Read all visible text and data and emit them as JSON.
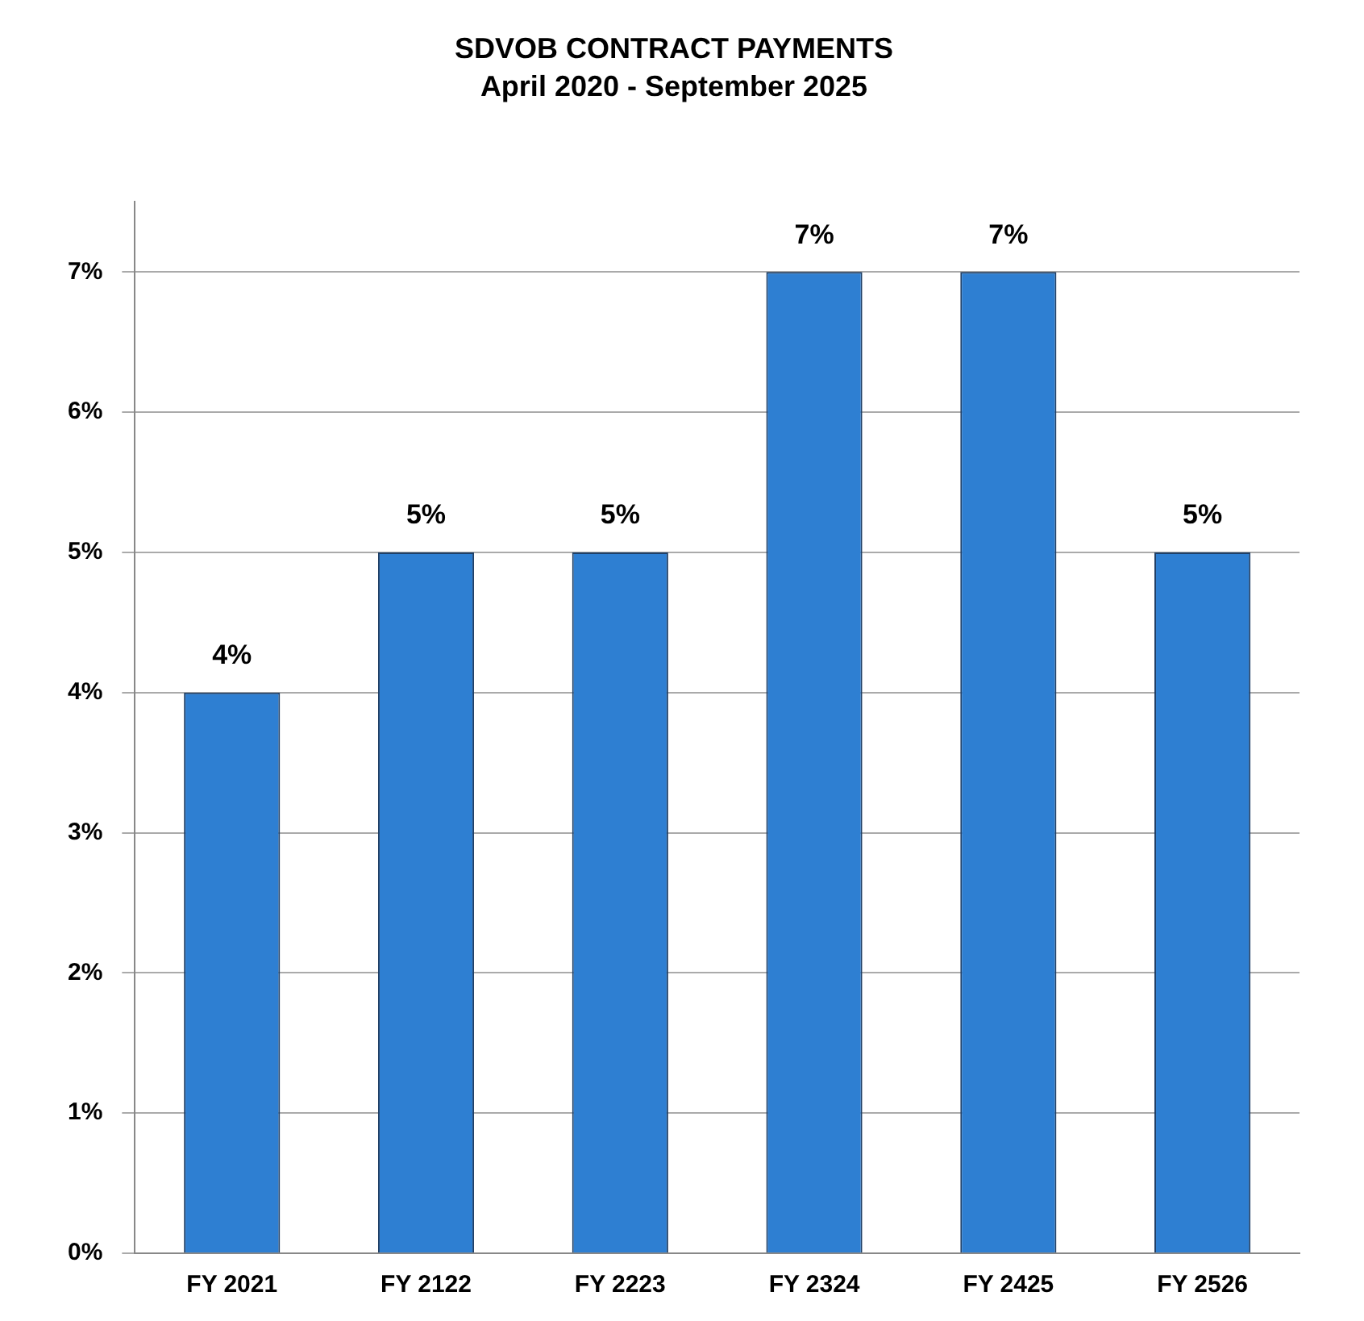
{
  "chart_data": {
    "type": "bar",
    "title": "SDVOB CONTRACT PAYMENTS",
    "subtitle": "April 2020 - September 2025",
    "categories": [
      "FY 2021",
      "FY 2122",
      "FY 2223",
      "FY 2324",
      "FY 2425",
      "FY 2526"
    ],
    "values": [
      4,
      5,
      5,
      7,
      7,
      5
    ],
    "color": "#2e7fd2",
    "value_labels": [
      "4%",
      "5%",
      "5%",
      "7%",
      "7%",
      "5%"
    ],
    "ylim": [
      0,
      7.5
    ],
    "yticks": [
      {
        "value": 0,
        "label": "0%"
      },
      {
        "value": 1,
        "label": "1%"
      },
      {
        "value": 2,
        "label": "2%"
      },
      {
        "value": 3,
        "label": "3%"
      },
      {
        "value": 4,
        "label": "4%"
      },
      {
        "value": 5,
        "label": "5%"
      },
      {
        "value": 6,
        "label": "6%"
      },
      {
        "value": 7,
        "label": "7%"
      }
    ],
    "grid": "y",
    "legend": false
  }
}
